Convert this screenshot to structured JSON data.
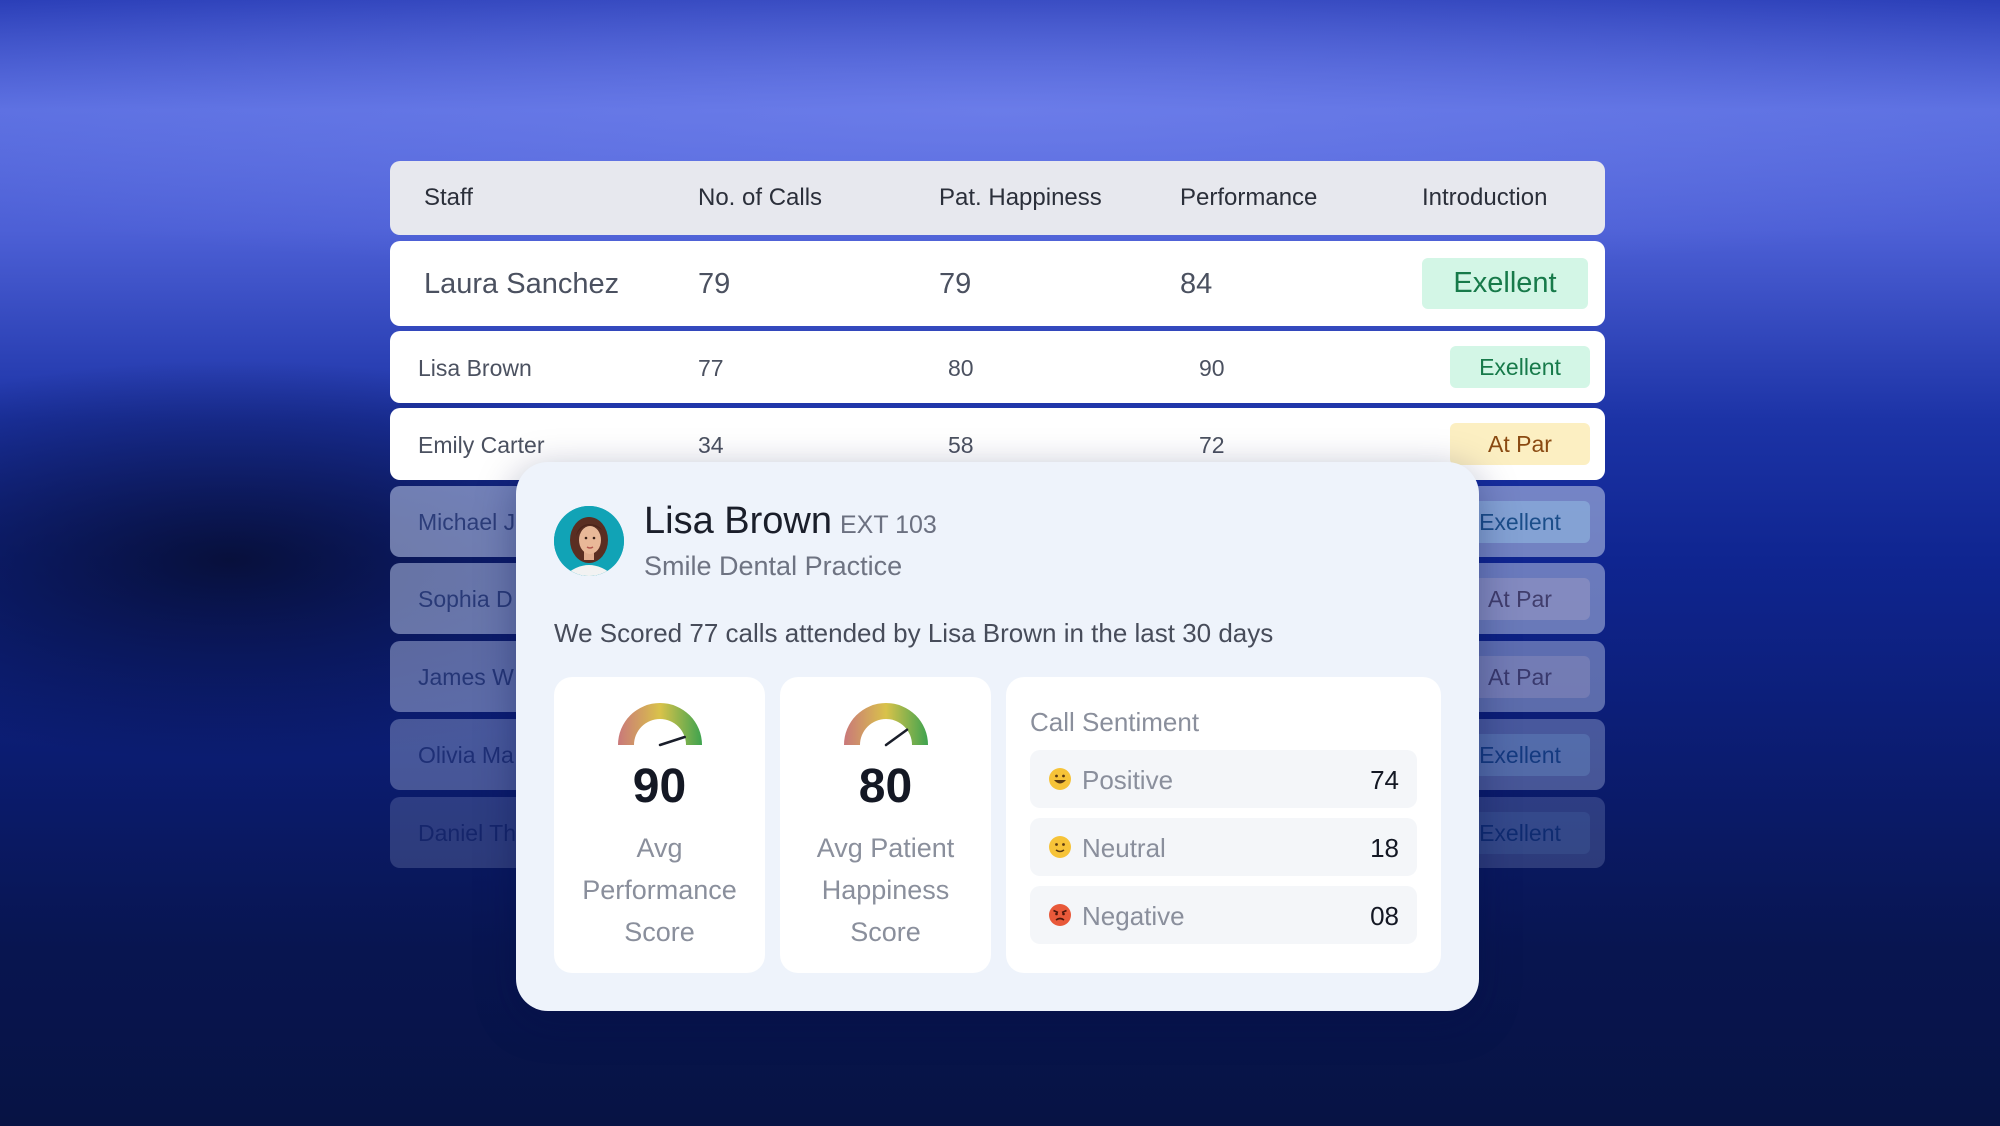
{
  "table": {
    "headers": [
      "Staff",
      "No. of Calls",
      "Pat. Happiness",
      "Performance",
      "Introduction"
    ],
    "rows": [
      {
        "staff": "Laura Sanchez",
        "calls": "79",
        "happiness": "79",
        "performance": "84",
        "intro": "Exellent"
      },
      {
        "staff": "Lisa Brown",
        "calls": "77",
        "happiness": "80",
        "performance": "90",
        "intro": "Exellent"
      },
      {
        "staff": "Emily Carter",
        "calls": "34",
        "happiness": "58",
        "performance": "72",
        "intro": "At Par"
      },
      {
        "staff": "Michael J",
        "intro": "Exellent"
      },
      {
        "staff": "Sophia D",
        "intro": "At Par"
      },
      {
        "staff": "James W",
        "intro": "At Par"
      },
      {
        "staff": "Olivia Ma",
        "intro": "Exellent"
      },
      {
        "staff": "Daniel Th",
        "intro": "Exellent"
      }
    ]
  },
  "card": {
    "name": "Lisa Brown",
    "ext": "EXT 103",
    "practice": "Smile Dental Practice",
    "summary": "We Scored 77 calls attended by Lisa Brown in the last 30 days",
    "metrics": [
      {
        "value": "90",
        "label": "Avg Performance Score",
        "gauge_fraction": 0.9
      },
      {
        "value": "80",
        "label": "Avg Patient Happiness Score",
        "gauge_fraction": 0.8
      }
    ],
    "sentiment": {
      "title": "Call Sentiment",
      "items": [
        {
          "label": "Positive",
          "value": "74",
          "emoji": "grinning-face-icon"
        },
        {
          "label": "Neutral",
          "value": "18",
          "emoji": "slight-smile-icon"
        },
        {
          "label": "Negative",
          "value": "08",
          "emoji": "angry-face-icon"
        }
      ]
    }
  },
  "colors": {
    "excellent_bg": "#d3f6e6",
    "excellent_text": "#177a4a",
    "atpar_bg": "#fcefc2",
    "atpar_text": "#8a4a12"
  }
}
